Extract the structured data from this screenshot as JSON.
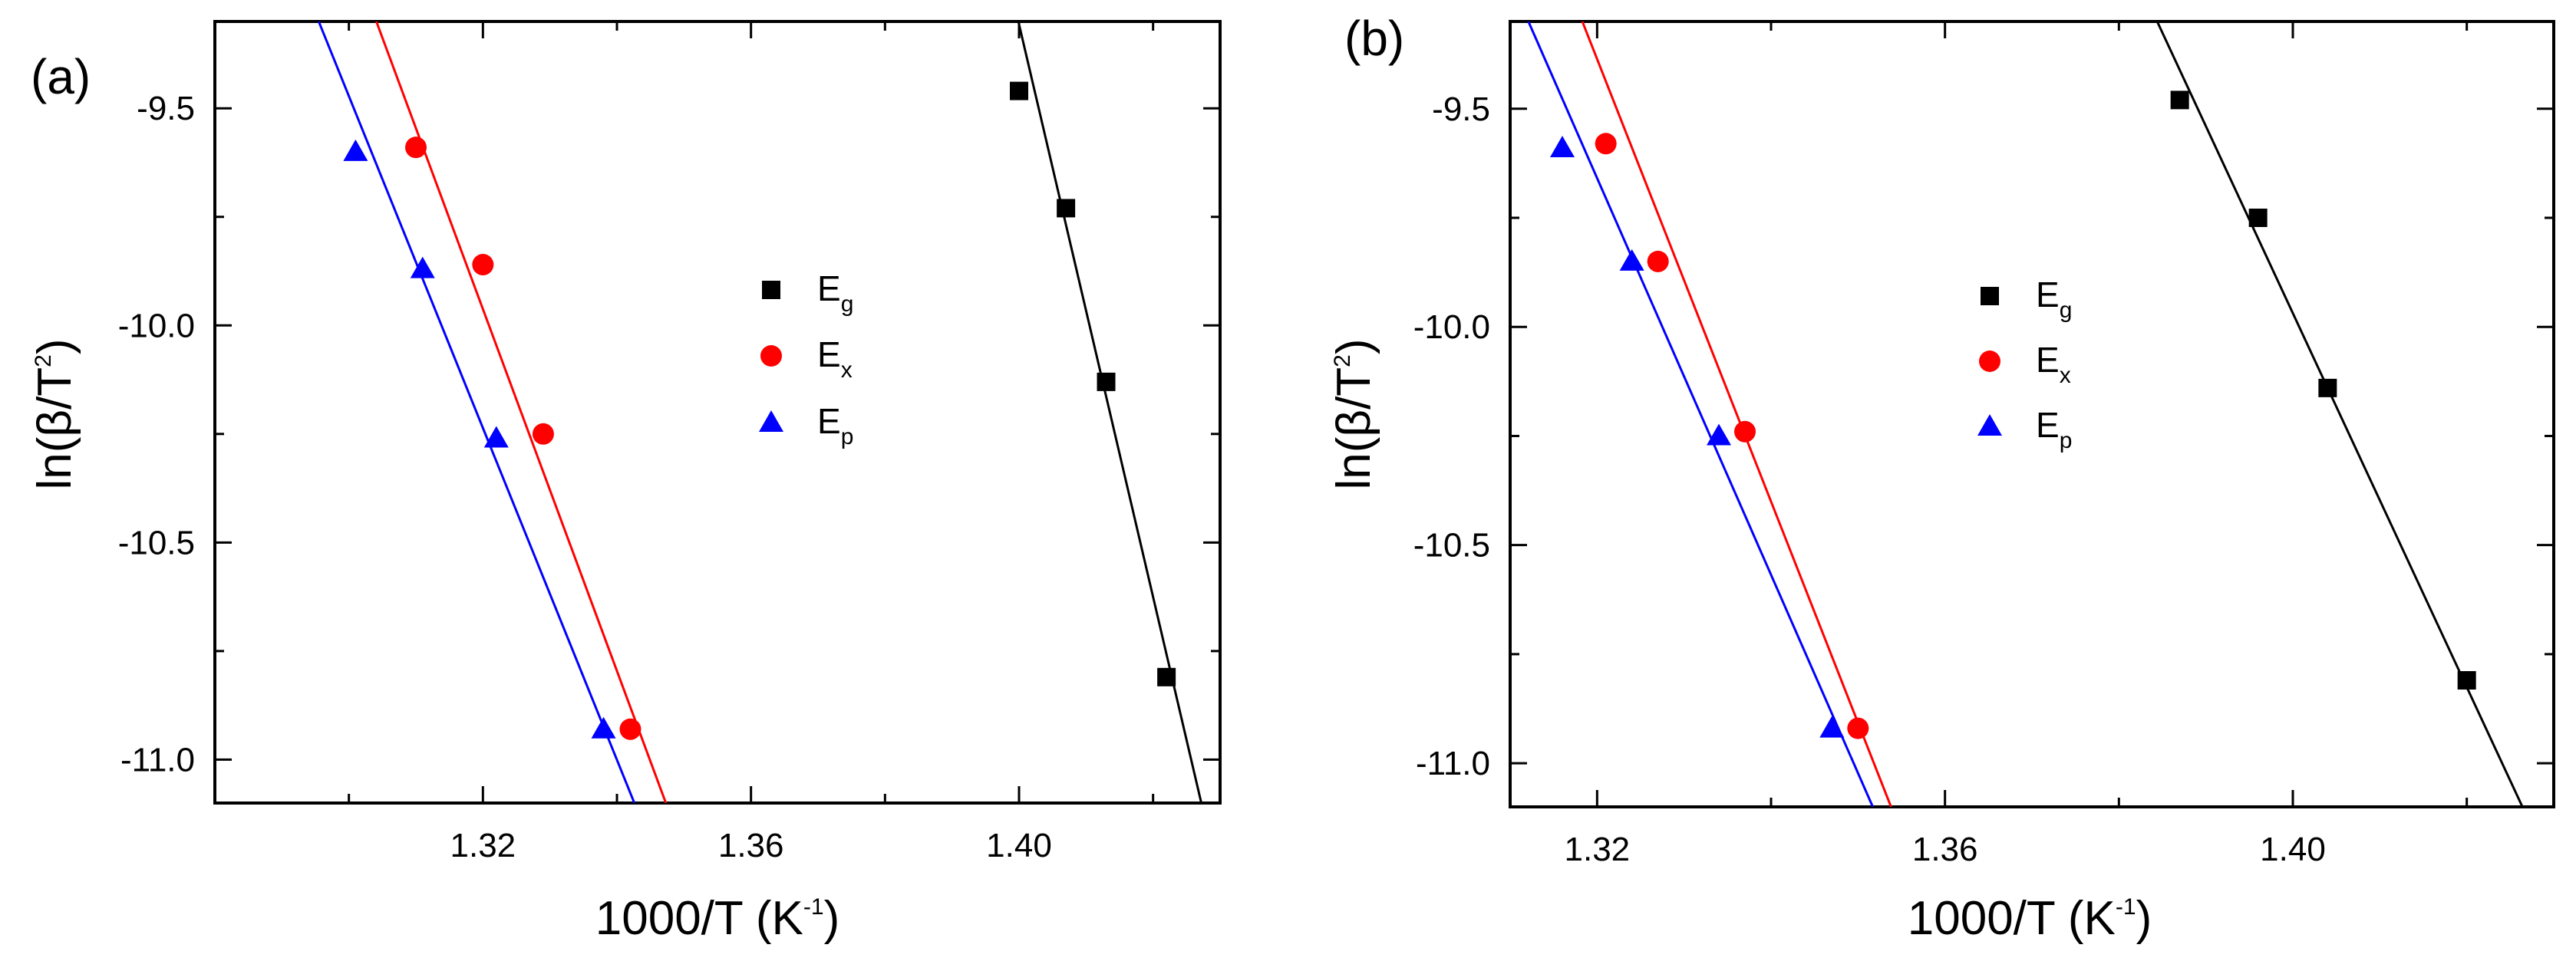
{
  "chart_data": [
    {
      "type": "scatter",
      "panel_label": "(a)",
      "xlabel": "1000/T (K",
      "xlabel_sup": "-1",
      "xlabel_tail": ")",
      "ylabel_main": "ln(β/T",
      "ylabel_sup": "2",
      "ylabel_tail": ")",
      "xlim": [
        1.28,
        1.43
      ],
      "ylim": [
        -11.1,
        -9.3
      ],
      "xticks": [
        1.32,
        1.36,
        1.4
      ],
      "xtick_labels": [
        "1.32",
        "1.36",
        "1.40"
      ],
      "yticks": [
        -9.5,
        -10.0,
        -10.5,
        -11.0
      ],
      "ytick_labels": [
        "-9.5",
        "-10.0",
        "-10.5",
        "-11.0"
      ],
      "legend_position": "center",
      "series": [
        {
          "name": "E",
          "sub": "g",
          "marker": "square",
          "color": "#000000",
          "x": [
            1.4,
            1.407,
            1.413,
            1.422
          ],
          "y": [
            -9.46,
            -9.73,
            -10.13,
            -10.81
          ],
          "fit": {
            "x": [
              1.3999,
              1.4272
            ],
            "y": [
              -9.3,
              -11.1
            ]
          }
        },
        {
          "name": "E",
          "sub": "x",
          "marker": "circle",
          "color": "#ff0000",
          "x": [
            1.31,
            1.32,
            1.329,
            1.342
          ],
          "y": [
            -9.59,
            -9.86,
            -10.25,
            -10.93
          ],
          "fit": {
            "x": [
              1.3041,
              1.3473
            ],
            "y": [
              -9.3,
              -11.1
            ]
          }
        },
        {
          "name": "E",
          "sub": "p",
          "marker": "triangle",
          "color": "#0000ff",
          "x": [
            1.301,
            1.311,
            1.322,
            1.338
          ],
          "y": [
            -9.6,
            -9.87,
            -10.26,
            -10.93
          ],
          "fit": {
            "x": [
              1.2955,
              1.3426
            ],
            "y": [
              -9.3,
              -11.1
            ]
          }
        }
      ]
    },
    {
      "type": "scatter",
      "panel_label": "(b)",
      "xlabel": "1000/T (K",
      "xlabel_sup": "-1",
      "xlabel_tail": ")",
      "ylabel_main": "ln(β/T",
      "ylabel_sup": "2",
      "ylabel_tail": ")",
      "xlim": [
        1.31,
        1.43
      ],
      "ylim": [
        -11.1,
        -9.3
      ],
      "xticks": [
        1.32,
        1.36,
        1.4
      ],
      "xtick_labels": [
        "1.32",
        "1.36",
        "1.40"
      ],
      "yticks": [
        -9.5,
        -10.0,
        -10.5,
        -11.0
      ],
      "ytick_labels": [
        "-9.5",
        "-10.0",
        "-10.5",
        "-11.0"
      ],
      "legend_position": "center",
      "series": [
        {
          "name": "E",
          "sub": "g",
          "marker": "square",
          "color": "#000000",
          "x": [
            1.387,
            1.396,
            1.404,
            1.42
          ],
          "y": [
            -9.48,
            -9.75,
            -10.14,
            -10.81
          ],
          "fit": {
            "x": [
              1.3844,
              1.4264
            ],
            "y": [
              -9.3,
              -11.1
            ]
          }
        },
        {
          "name": "E",
          "sub": "x",
          "marker": "circle",
          "color": "#ff0000",
          "x": [
            1.321,
            1.327,
            1.337,
            1.35
          ],
          "y": [
            -9.58,
            -9.85,
            -10.24,
            -10.92
          ],
          "fit": {
            "x": [
              1.3183,
              1.3538
            ],
            "y": [
              -9.3,
              -11.1
            ]
          }
        },
        {
          "name": "E",
          "sub": "p",
          "marker": "triangle",
          "color": "#0000ff",
          "x": [
            1.316,
            1.324,
            1.334,
            1.347
          ],
          "y": [
            -9.59,
            -9.85,
            -10.25,
            -10.92
          ],
          "fit": {
            "x": [
              1.3121,
              1.3517
            ],
            "y": [
              -9.3,
              -11.1
            ]
          }
        }
      ]
    }
  ]
}
